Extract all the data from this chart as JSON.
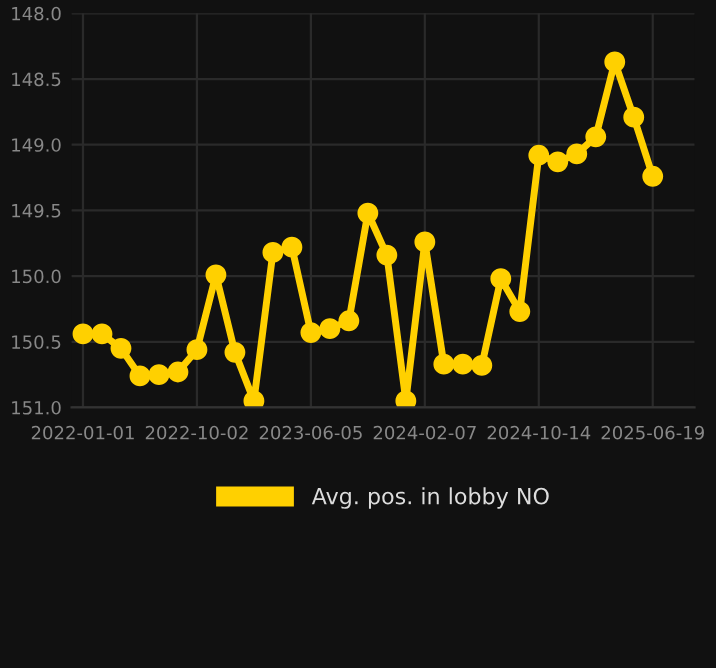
{
  "chart_data": {
    "type": "line",
    "categories": [
      "2022-01-01",
      null,
      null,
      null,
      null,
      null,
      "2022-10-02",
      null,
      null,
      null,
      null,
      null,
      "2023-06-05",
      null,
      null,
      null,
      null,
      null,
      "2024-02-07",
      null,
      null,
      null,
      null,
      null,
      "2024-10-14",
      null,
      null,
      null,
      null,
      null,
      "2025-06-19"
    ],
    "series": [
      {
        "name": "Avg. pos. in lobby NO",
        "color": "#ffd000",
        "values": [
          150.44,
          150.44,
          150.55,
          150.76,
          150.75,
          150.73,
          150.56,
          149.99,
          150.58,
          150.95,
          149.82,
          149.78,
          150.43,
          150.4,
          150.34,
          149.52,
          149.84,
          150.95,
          149.74,
          150.67,
          150.67,
          150.68,
          150.02,
          150.27,
          149.08,
          149.13,
          149.07,
          148.94,
          148.37,
          148.79,
          149.24
        ]
      }
    ],
    "ylim": [
      151.0,
      148.0
    ],
    "yticks": [
      {
        "value": 148.0,
        "label": "148.0"
      },
      {
        "value": 148.5,
        "label": "148.5"
      },
      {
        "value": 149.0,
        "label": "149.0"
      },
      {
        "value": 149.5,
        "label": "149.5"
      },
      {
        "value": 150.0,
        "label": "150.0"
      },
      {
        "value": 150.5,
        "label": "150.5"
      },
      {
        "value": 151.0,
        "label": "151.0"
      }
    ],
    "grid": true,
    "legend": "bottom",
    "marker": "circle",
    "line_style": "solid"
  }
}
